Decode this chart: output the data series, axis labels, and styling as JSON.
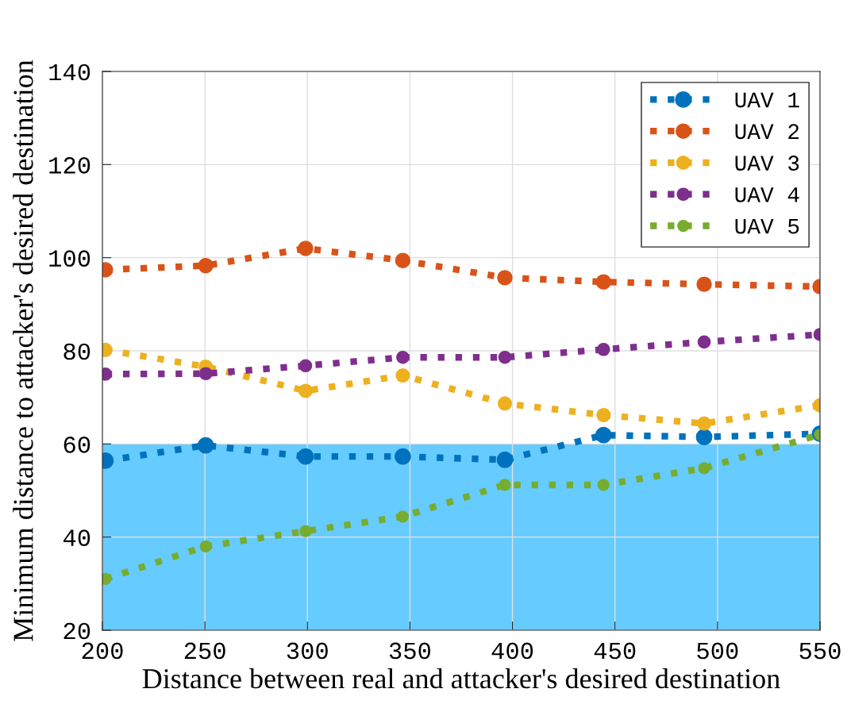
{
  "chart_data": {
    "type": "line",
    "xlabel": "Distance between real and attacker's desired destination",
    "ylabel": "Minimum distance to attacker's desired destination",
    "x": [
      201.5,
      250.4,
      299.1,
      346.5,
      396.3,
      444.4,
      493.5,
      550
    ],
    "series": [
      {
        "name": "UAV 1",
        "color": "#0072bd",
        "values": [
          56.4,
          59.7,
          57.3,
          57.3,
          56.6,
          61.9,
          61.5,
          62.2
        ]
      },
      {
        "name": "UAV 2",
        "color": "#d95319",
        "values": [
          97.4,
          98.3,
          102.0,
          99.4,
          95.7,
          94.8,
          94.3,
          93.8
        ]
      },
      {
        "name": "UAV 3",
        "color": "#edb120",
        "values": [
          80.2,
          76.6,
          71.4,
          74.7,
          68.7,
          66.2,
          64.4,
          68.3
        ]
      },
      {
        "name": "UAV 4",
        "color": "#7e2f8e",
        "values": [
          75.0,
          75.1,
          76.8,
          78.6,
          78.6,
          80.3,
          81.9,
          83.5
        ]
      },
      {
        "name": "UAV 5",
        "color": "#77ac30",
        "values": [
          31.0,
          38.0,
          41.3,
          44.4,
          51.2,
          51.2,
          54.8,
          62.0
        ]
      }
    ],
    "bands": [
      {
        "axis": "y",
        "from": 20,
        "to": 60,
        "color": "#66ccff"
      }
    ],
    "xlim": [
      200,
      550
    ],
    "xticks": [
      200,
      250,
      300,
      350,
      400,
      450,
      500,
      550
    ],
    "ylim": [
      20,
      140
    ],
    "yticks": [
      20,
      40,
      60,
      80,
      100,
      120,
      140
    ],
    "grid": true,
    "legend": "top right",
    "marker": "circle",
    "line_style": "dotted"
  }
}
